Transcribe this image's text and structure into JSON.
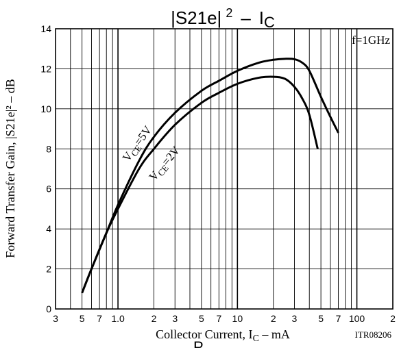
{
  "page": {
    "part_code": "ITR08206",
    "cut_text": "P"
  },
  "chart_data": {
    "type": "line",
    "title": {
      "main": "|S21e|",
      "sup": "2",
      "dash": "–",
      "sym": "I",
      "sub": "C"
    },
    "xlabel": {
      "pre": "Collector Current, I",
      "sub": "C",
      "post": " –  mA"
    },
    "ylabel": "Forward Transfer Gain, |S21e|² – dB",
    "annotation": "f=1GHz",
    "x_scale": "log",
    "xlim": [
      0.3,
      200
    ],
    "ylim": [
      0,
      14
    ],
    "grid": true,
    "x_gridlines": [
      0.3,
      0.4,
      0.5,
      0.6,
      0.7,
      0.8,
      0.9,
      1,
      2,
      3,
      4,
      5,
      6,
      7,
      8,
      9,
      10,
      20,
      30,
      40,
      50,
      60,
      70,
      80,
      90,
      100,
      200
    ],
    "x_ticks": [
      {
        "value": 0.3,
        "label": "3"
      },
      {
        "value": 0.5,
        "label": "5"
      },
      {
        "value": 0.7,
        "label": "7"
      },
      {
        "value": 1,
        "label": "1.0"
      },
      {
        "value": 2,
        "label": "2"
      },
      {
        "value": 3,
        "label": "3"
      },
      {
        "value": 5,
        "label": "5"
      },
      {
        "value": 7,
        "label": "7"
      },
      {
        "value": 10,
        "label": "10"
      },
      {
        "value": 20,
        "label": "2"
      },
      {
        "value": 30,
        "label": "3"
      },
      {
        "value": 50,
        "label": "5"
      },
      {
        "value": 70,
        "label": "7"
      },
      {
        "value": 100,
        "label": "100"
      },
      {
        "value": 200,
        "label": "2"
      }
    ],
    "y_ticks": [
      {
        "value": 0,
        "label": "0"
      },
      {
        "value": 2,
        "label": "2"
      },
      {
        "value": 4,
        "label": "4"
      },
      {
        "value": 6,
        "label": "6"
      },
      {
        "value": 8,
        "label": "8"
      },
      {
        "value": 10,
        "label": "10"
      },
      {
        "value": 12,
        "label": "12"
      },
      {
        "value": 14,
        "label": "14"
      }
    ],
    "series": [
      {
        "name": "VCE=5V",
        "label": {
          "v": "V",
          "sub": "CE",
          "rest": "=5V"
        },
        "x": [
          0.5,
          0.6,
          0.8,
          1.0,
          1.5,
          2,
          3,
          5,
          7,
          10,
          15,
          20,
          25,
          30,
          35,
          40,
          50,
          60,
          70
        ],
        "y": [
          0.8,
          2.0,
          3.8,
          5.2,
          7.4,
          8.6,
          9.8,
          10.9,
          11.4,
          11.9,
          12.3,
          12.45,
          12.5,
          12.48,
          12.3,
          11.9,
          10.6,
          9.6,
          8.8
        ]
      },
      {
        "name": "VCE=2V",
        "label": {
          "v": "V",
          "sub": "CE",
          "rest": "=2V"
        },
        "x": [
          0.5,
          0.6,
          0.8,
          1.0,
          1.5,
          2,
          3,
          5,
          7,
          10,
          15,
          20,
          25,
          30,
          35,
          40,
          47
        ],
        "y": [
          0.8,
          2.0,
          3.8,
          5.0,
          7.0,
          8.0,
          9.2,
          10.3,
          10.8,
          11.25,
          11.55,
          11.6,
          11.5,
          11.1,
          10.5,
          9.7,
          8.0
        ]
      }
    ]
  }
}
